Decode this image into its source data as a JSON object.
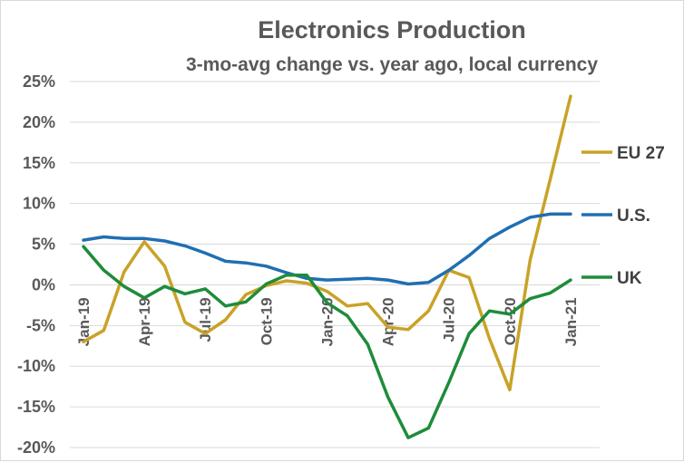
{
  "chart_data": {
    "type": "line",
    "title": "Electronics Production",
    "subtitle": "3-mo-avg change vs. year ago, local currency",
    "xlabel": "",
    "ylabel": "",
    "ylim": [
      -20,
      25
    ],
    "yticks": [
      25,
      20,
      15,
      10,
      5,
      0,
      -5,
      -10,
      -15,
      -20
    ],
    "ytick_labels": [
      "25%",
      "20%",
      "15%",
      "10%",
      "5%",
      "0%",
      "-5%",
      "-10%",
      "-15%",
      "-20%"
    ],
    "x": [
      "Jan-19",
      "Feb-19",
      "Mar-19",
      "Apr-19",
      "May-19",
      "Jun-19",
      "Jul-19",
      "Aug-19",
      "Sep-19",
      "Oct-19",
      "Nov-19",
      "Dec-19",
      "Jan-20",
      "Feb-20",
      "Mar-20",
      "Apr-20",
      "May-20",
      "Jun-20",
      "Jul-20",
      "Aug-20",
      "Sep-20",
      "Oct-20",
      "Nov-20",
      "Dec-20",
      "Jan-21"
    ],
    "xtick_labels": [
      "Jan-19",
      "Apr-19",
      "Jul-19",
      "Oct-19",
      "Jan-20",
      "Apr-20",
      "Jul-20",
      "Oct-20",
      "Jan-21"
    ],
    "grid": true,
    "legend": "right, labels at line ends",
    "series": [
      {
        "name": "EU 27",
        "color": "#C9A227",
        "values": [
          -7.0,
          -5.6,
          1.6,
          5.3,
          2.3,
          -4.6,
          -6.0,
          -4.3,
          -1.2,
          -0.1,
          0.5,
          0.2,
          -0.8,
          -2.6,
          -2.3,
          -5.2,
          -5.5,
          -3.2,
          1.8,
          0.9,
          -6.6,
          -12.9,
          3.0,
          13.0,
          23.2
        ]
      },
      {
        "name": "U.S.",
        "color": "#1F6FB2",
        "values": [
          5.5,
          5.9,
          5.7,
          5.7,
          5.4,
          4.8,
          3.9,
          2.9,
          2.7,
          2.3,
          1.5,
          0.8,
          0.6,
          0.7,
          0.8,
          0.6,
          0.1,
          0.3,
          1.8,
          3.6,
          5.7,
          7.1,
          8.3,
          8.7,
          8.7
        ]
      },
      {
        "name": "UK",
        "color": "#1E8C3A",
        "values": [
          4.7,
          1.8,
          -0.2,
          -1.6,
          -0.2,
          -1.1,
          -0.5,
          -2.6,
          -2.1,
          0.1,
          1.2,
          1.2,
          -2.2,
          -3.8,
          -7.3,
          -13.8,
          -18.8,
          -17.6,
          -12.0,
          -6.0,
          -3.2,
          -3.6,
          -1.7,
          -1.0,
          0.6
        ]
      }
    ]
  }
}
